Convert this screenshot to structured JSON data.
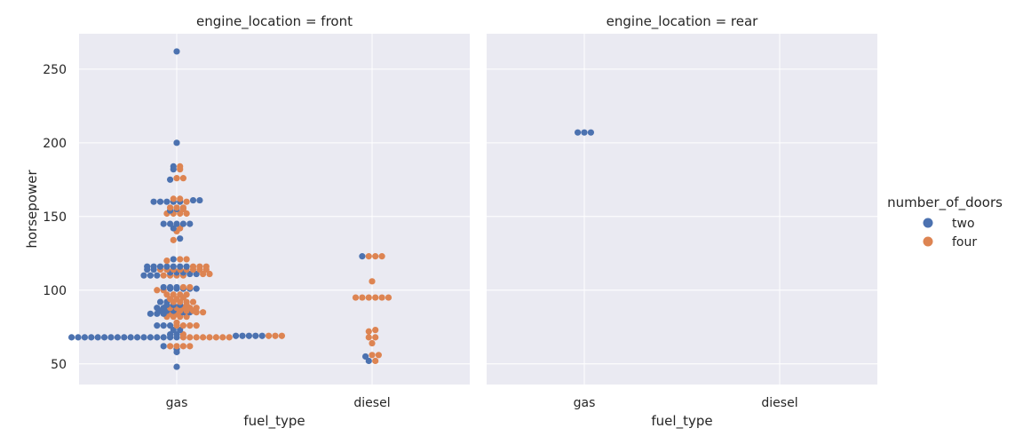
{
  "chart_data": {
    "type": "scatter",
    "subtype": "swarm",
    "style": "seaborn-darkgrid",
    "background_color": "#eaeaf2",
    "grid": true,
    "ylabel": "horsepower",
    "ylim": [
      36,
      274
    ],
    "yticks": [
      50,
      100,
      150,
      200,
      250
    ],
    "categories": [
      "gas",
      "diesel"
    ],
    "legend": {
      "title": "number_of_doors",
      "placement": "right",
      "entries": [
        {
          "name": "two",
          "color": "#4c72b0"
        },
        {
          "name": "four",
          "color": "#dd8452"
        }
      ]
    },
    "panels": [
      {
        "title": "engine_location = front",
        "xlabel": "fuel_type",
        "groups": [
          {
            "category": "gas",
            "two": [
              48,
              58,
              60,
              62,
              68,
              68,
              68,
              68,
              68,
              68,
              68,
              68,
              68,
              68,
              68,
              68,
              68,
              68,
              68,
              68,
              68,
              69,
              69,
              69,
              69,
              69,
              70,
              70,
              73,
              73,
              76,
              76,
              76,
              84,
              84,
              84,
              85,
              85,
              86,
              86,
              86,
              88,
              88,
              90,
              90,
              90,
              92,
              92,
              101,
              101,
              101,
              101,
              101,
              102,
              102,
              102,
              110,
              110,
              110,
              111,
              111,
              112,
              112,
              112,
              114,
              114,
              116,
              116,
              116,
              116,
              116,
              116,
              116,
              121,
              135,
              142,
              145,
              145,
              145,
              145,
              145,
              154,
              155,
              160,
              160,
              160,
              160,
              160,
              161,
              161,
              175,
              182,
              184,
              200,
              262
            ],
            "four": [
              62,
              62,
              62,
              62,
              68,
              68,
              68,
              68,
              68,
              68,
              68,
              68,
              69,
              69,
              69,
              70,
              76,
              76,
              76,
              76,
              78,
              82,
              82,
              82,
              82,
              84,
              84,
              85,
              85,
              86,
              86,
              86,
              88,
              88,
              88,
              88,
              88,
              90,
              92,
              92,
              92,
              92,
              94,
              94,
              95,
              97,
              97,
              97,
              97,
              100,
              100,
              102,
              102,
              110,
              110,
              110,
              110,
              111,
              111,
              114,
              114,
              114,
              114,
              114,
              114,
              114,
              114,
              116,
              116,
              116,
              120,
              121,
              121,
              134,
              140,
              142,
              152,
              152,
              152,
              152,
              155,
              156,
              156,
              156,
              160,
              162,
              162,
              176,
              176,
              182,
              184
            ]
          },
          {
            "category": "diesel",
            "two": [
              52,
              55,
              123
            ],
            "four": [
              52,
              56,
              56,
              64,
              68,
              68,
              72,
              73,
              95,
              95,
              95,
              95,
              95,
              95,
              106,
              123,
              123,
              123
            ]
          }
        ]
      },
      {
        "title": "engine_location = rear",
        "xlabel": "fuel_type",
        "groups": [
          {
            "category": "gas",
            "two": [
              207,
              207,
              207
            ],
            "four": []
          },
          {
            "category": "diesel",
            "two": [],
            "four": []
          }
        ]
      }
    ]
  }
}
